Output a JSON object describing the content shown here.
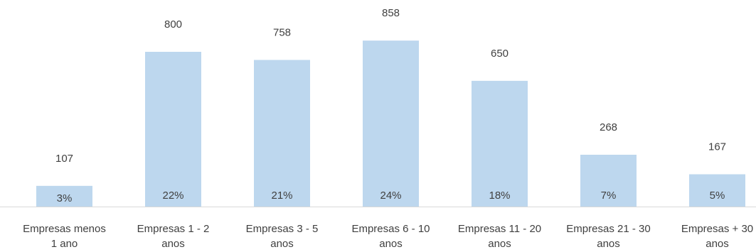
{
  "chart_data": {
    "type": "bar",
    "title": "",
    "xlabel": "",
    "ylabel": "",
    "categories": [
      [
        "Empresas menos",
        "1 ano"
      ],
      [
        "Empresas 1 - 2",
        "anos"
      ],
      [
        "Empresas 3 - 5",
        "anos"
      ],
      [
        "Empresas 6 - 10",
        "anos"
      ],
      [
        "Empresas 11 - 20",
        "anos"
      ],
      [
        "Empresas 21 - 30",
        "anos"
      ],
      [
        "Empresas + 30",
        "anos"
      ]
    ],
    "values": [
      107,
      800,
      758,
      858,
      650,
      268,
      167
    ],
    "value_labels": [
      "107",
      "800",
      "758",
      "858",
      "650",
      "268",
      "167"
    ],
    "percent_labels": [
      "3%",
      "22%",
      "21%",
      "24%",
      "18%",
      "7%",
      "5%"
    ],
    "ylim": [
      0,
      1000
    ],
    "grid": false,
    "legend": "none",
    "colors": {
      "bar": "#bdd7ee",
      "axis": "#d9d9d9",
      "text": "#404040"
    }
  }
}
